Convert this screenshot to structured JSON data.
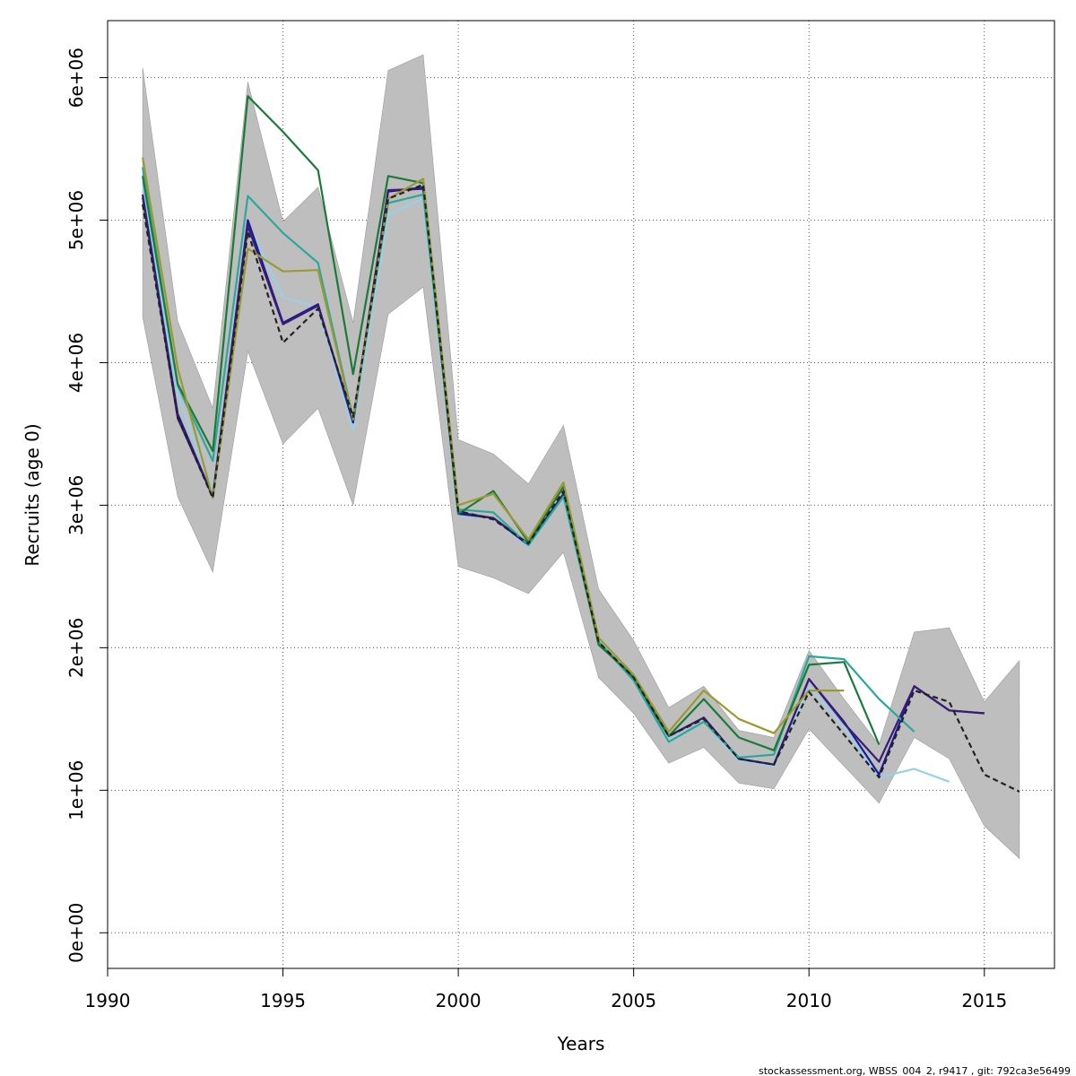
{
  "chart_data": {
    "type": "line",
    "title": "",
    "xlabel": "Years",
    "ylabel": "Recruits (age 0)",
    "xlim": [
      1990,
      2017
    ],
    "ylim": [
      -250000,
      6400000
    ],
    "grid": true,
    "x_ticks": [
      1990,
      1995,
      2000,
      2005,
      2010,
      2015
    ],
    "x_tick_labels": [
      "1990",
      "1995",
      "2000",
      "2005",
      "2010",
      "2015"
    ],
    "y_ticks": [
      0,
      1000000,
      2000000,
      3000000,
      4000000,
      5000000,
      6000000
    ],
    "y_tick_labels": [
      "0e+00",
      "1e+06",
      "2e+06",
      "3e+06",
      "4e+06",
      "5e+06",
      "6e+06"
    ],
    "band": {
      "x": [
        1991,
        1992,
        1993,
        1994,
        1995,
        1996,
        1997,
        1998,
        1999,
        2000,
        2001,
        2002,
        2003,
        2004,
        2005,
        2006,
        2007,
        2008,
        2009,
        2010,
        2011,
        2012,
        2013,
        2014,
        2015,
        2016
      ],
      "upper": [
        6070000,
        4290000,
        3680000,
        5970000,
        4990000,
        5230000,
        4280000,
        6050000,
        6160000,
        3460000,
        3360000,
        3150000,
        3560000,
        2410000,
        2050000,
        1580000,
        1730000,
        1420000,
        1370000,
        1980000,
        1640000,
        1320000,
        2110000,
        2140000,
        1620000,
        1910000
      ],
      "lower": [
        4320000,
        3060000,
        2530000,
        4080000,
        3430000,
        3680000,
        3000000,
        4340000,
        4530000,
        2570000,
        2490000,
        2380000,
        2670000,
        1790000,
        1540000,
        1190000,
        1300000,
        1050000,
        1010000,
        1430000,
        1170000,
        910000,
        1370000,
        1220000,
        750000,
        520000
      ],
      "color": "#bebebe"
    },
    "series": [
      {
        "color": "#99d0e8",
        "dash": false,
        "x": [
          1991,
          1992,
          1993,
          1994,
          1995,
          1996,
          1997,
          1998,
          1999,
          2000,
          2001,
          2002,
          2003,
          2004,
          2005,
          2006,
          2007,
          2008,
          2009,
          2010,
          2011,
          2012,
          2013,
          2014
        ],
        "values": [
          5250000,
          3780000,
          3090000,
          4980000,
          4460000,
          4390000,
          3530000,
          5040000,
          5150000,
          2930000,
          2910000,
          2710000,
          3060000,
          2060000,
          1770000,
          1350000,
          1480000,
          1210000,
          1170000,
          1730000,
          1440000,
          1090000,
          1150000,
          1060000
        ]
      },
      {
        "color": "#1a1a9a",
        "dash": false,
        "x": [
          1991,
          1992,
          1993,
          1994,
          1995,
          1996,
          1997,
          1998,
          1999,
          2000,
          2001,
          2002,
          2003,
          2004,
          2005,
          2006,
          2007,
          2008,
          2009,
          2010,
          2011,
          2012,
          2013,
          2014,
          2015
        ],
        "values": [
          5180000,
          3640000,
          3060000,
          5000000,
          4280000,
          4410000,
          3580000,
          5200000,
          5230000,
          2940000,
          2910000,
          2720000,
          3070000,
          2040000,
          1780000,
          1380000,
          1510000,
          1220000,
          1180000,
          1780000,
          1480000,
          1110000,
          1730000,
          1560000,
          1540000
        ]
      },
      {
        "color": "#3a1c74",
        "dash": false,
        "x": [
          1991,
          1992,
          1993,
          1994,
          1995,
          1996,
          1997,
          1998,
          1999,
          2000,
          2001,
          2002,
          2003,
          2004,
          2005,
          2006,
          2007,
          2008,
          2009,
          2010,
          2011,
          2012,
          2013,
          2014,
          2015
        ],
        "values": [
          5160000,
          3610000,
          3060000,
          4960000,
          4270000,
          4400000,
          3600000,
          5210000,
          5220000,
          2950000,
          2910000,
          2730000,
          3080000,
          2040000,
          1780000,
          1380000,
          1510000,
          1220000,
          1180000,
          1780000,
          1470000,
          1200000,
          1730000,
          1560000,
          1540000
        ]
      },
      {
        "color": "#2aa89a",
        "dash": false,
        "x": [
          1991,
          1992,
          1993,
          1994,
          1995,
          1996,
          1997,
          1998,
          1999,
          2000,
          2001,
          2002,
          2003,
          2004,
          2005,
          2006,
          2007,
          2008,
          2009,
          2010,
          2011,
          2012,
          2013
        ],
        "values": [
          5370000,
          3840000,
          3310000,
          5170000,
          4910000,
          4700000,
          3610000,
          5120000,
          5180000,
          2970000,
          2950000,
          2720000,
          3060000,
          2040000,
          1770000,
          1340000,
          1480000,
          1230000,
          1250000,
          1940000,
          1920000,
          1640000,
          1410000
        ]
      },
      {
        "color": "#1b7a38",
        "dash": false,
        "x": [
          1991,
          1992,
          1993,
          1994,
          1995,
          1996,
          1997,
          1998,
          1999,
          2000,
          2001,
          2002,
          2003,
          2004,
          2005,
          2006,
          2007,
          2008,
          2009,
          2010,
          2011,
          2012
        ],
        "values": [
          5310000,
          3850000,
          3380000,
          5870000,
          5620000,
          5350000,
          3920000,
          5310000,
          5260000,
          2940000,
          3100000,
          2740000,
          3130000,
          2020000,
          1800000,
          1380000,
          1640000,
          1370000,
          1280000,
          1880000,
          1900000,
          1320000
        ]
      },
      {
        "color": "#9a9a30",
        "dash": false,
        "x": [
          1991,
          1992,
          1993,
          1994,
          1995,
          1996,
          1997,
          1998,
          1999,
          2000,
          2001,
          2002,
          2003,
          2004,
          2005,
          2006,
          2007,
          2008,
          2009,
          2010,
          2011
        ],
        "values": [
          5440000,
          3960000,
          3050000,
          4800000,
          4640000,
          4650000,
          3600000,
          5150000,
          5290000,
          3000000,
          3080000,
          2760000,
          3160000,
          2070000,
          1810000,
          1410000,
          1700000,
          1500000,
          1400000,
          1700000,
          1700000
        ]
      },
      {
        "color": "#222222",
        "dash": true,
        "x": [
          1991,
          1992,
          1993,
          1994,
          1995,
          1996,
          1997,
          1998,
          1999,
          2000,
          2001,
          2002,
          2003,
          2004,
          2005,
          2006,
          2007,
          2008,
          2009,
          2010,
          2011,
          2012,
          2013,
          2014,
          2015,
          2016
        ],
        "values": [
          5110000,
          3620000,
          3050000,
          4920000,
          4140000,
          4380000,
          3620000,
          5150000,
          5250000,
          2960000,
          2900000,
          2730000,
          3100000,
          2040000,
          1790000,
          1380000,
          1500000,
          1220000,
          1180000,
          1690000,
          1390000,
          1090000,
          1700000,
          1620000,
          1110000,
          990000
        ]
      }
    ]
  },
  "footer": {
    "text": "stockassessment.org, WBSS_004_2, r9417 , git: 792ca3e56499"
  }
}
